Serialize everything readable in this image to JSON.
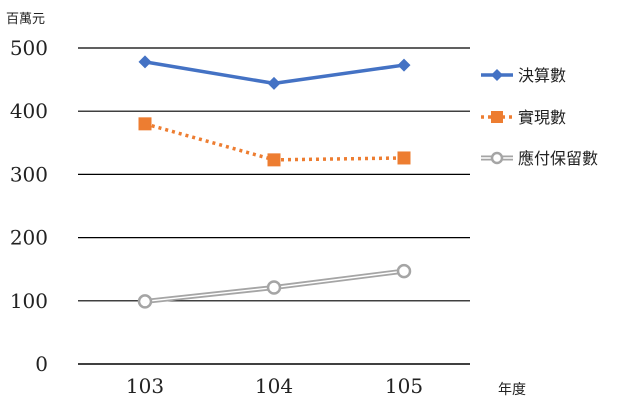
{
  "chart_data": {
    "type": "line",
    "y_unit_label": "百萬元",
    "xlabel": "年度",
    "categories": [
      "103",
      "104",
      "105"
    ],
    "ylim": [
      0,
      500
    ],
    "yticks": [
      0,
      100,
      200,
      300,
      400,
      500
    ],
    "grid": true,
    "legend_position": "right",
    "series": [
      {
        "name": "決算數",
        "values": [
          478,
          444,
          473
        ],
        "color": "#4472C4",
        "marker": "diamond",
        "line": "solid"
      },
      {
        "name": "實現數",
        "values": [
          380,
          323,
          326
        ],
        "color": "#ED7D31",
        "marker": "square",
        "line": "dotted"
      },
      {
        "name": "應付保留數",
        "values": [
          99,
          121,
          147
        ],
        "color": "#A5A5A5",
        "marker": "circle",
        "line": "double"
      }
    ]
  }
}
